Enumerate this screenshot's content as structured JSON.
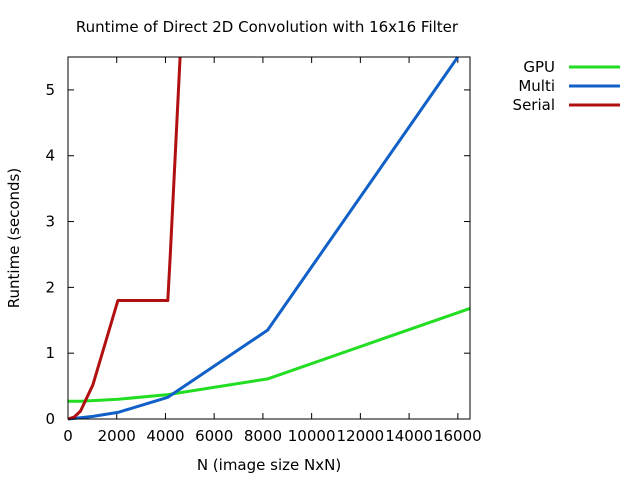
{
  "chart_data": {
    "type": "line",
    "title": "Runtime of Direct 2D Convolution with 16x16 Filter",
    "xlabel": "N (image size NxN)",
    "ylabel": "Runtime (seconds)",
    "xlim": [
      0,
      16500
    ],
    "ylim": [
      0,
      5.5
    ],
    "xticks": [
      0,
      2000,
      4000,
      6000,
      8000,
      10000,
      12000,
      14000,
      16000
    ],
    "yticks": [
      0,
      1,
      2,
      3,
      4,
      5
    ],
    "grid": false,
    "legend_position": "outside-top-right",
    "series": [
      {
        "name": "GPU",
        "color": "#22dd22",
        "x": [
          0,
          512,
          1024,
          2048,
          4096,
          8192,
          16500
        ],
        "y": [
          0.27,
          0.27,
          0.28,
          0.3,
          0.37,
          0.61,
          1.68
        ]
      },
      {
        "name": "Multi",
        "color": "#1060c8",
        "x": [
          0,
          512,
          1024,
          2048,
          4096,
          8192,
          16000
        ],
        "y": [
          0.0,
          0.02,
          0.04,
          0.1,
          0.33,
          1.35,
          5.5
        ]
      },
      {
        "name": "Serial",
        "color": "#b01010",
        "x": [
          0,
          256,
          512,
          1024,
          2048,
          4096,
          4200,
          4600
        ],
        "y": [
          0.0,
          0.03,
          0.12,
          0.52,
          1.8,
          1.8,
          2.5,
          5.5
        ]
      }
    ]
  }
}
